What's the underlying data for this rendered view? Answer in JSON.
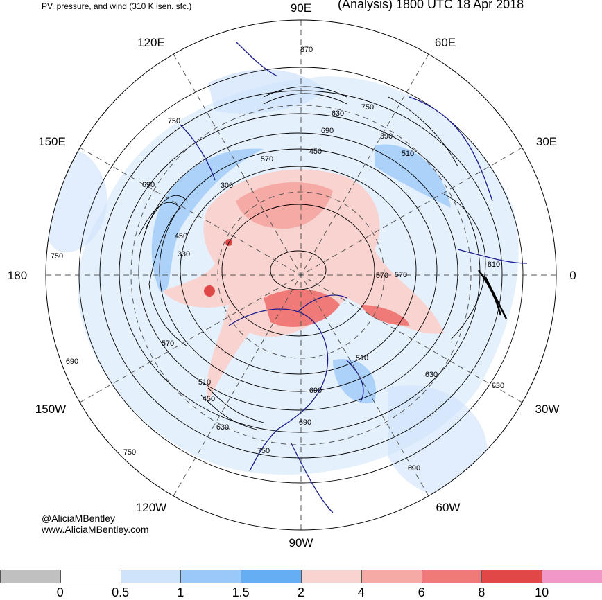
{
  "header": {
    "left_title": "PV, pressure, and wind (310 K isen. sfc.)",
    "right_title": "(Analysis) 1800 UTC 18 Apr 2018"
  },
  "credits": {
    "handle": "@AliciaMBentley",
    "website": "www.AliciaMBentley.com"
  },
  "longitude_labels": [
    "90E",
    "60E",
    "30E",
    "0",
    "30W",
    "60W",
    "90W",
    "120W",
    "150W",
    "180",
    "150E",
    "120E"
  ],
  "contour_labels": [
    "870",
    "750",
    "630",
    "690",
    "390",
    "510",
    "450",
    "570",
    "300",
    "750",
    "690",
    "450",
    "330",
    "750",
    "810",
    "570",
    "570",
    "510",
    "690",
    "630",
    "510",
    "450",
    "690",
    "630",
    "690",
    "750",
    "630",
    "750",
    "690",
    "570"
  ],
  "colorbar": {
    "tick_labels": [
      "0",
      "0.5",
      "1",
      "1.5",
      "2",
      "4",
      "6",
      "8",
      "10"
    ],
    "colors": [
      "#c0c0c0",
      "#ffffff",
      "#cfe3fb",
      "#9ac8f7",
      "#66aef4",
      "#f8d3cf",
      "#f5aaa6",
      "#f07a78",
      "#e04848",
      "#f098c8"
    ]
  },
  "map_style": {
    "coastline_color": "#1a1a8c",
    "contour_color": "#000000",
    "grid_color": "#555555"
  }
}
